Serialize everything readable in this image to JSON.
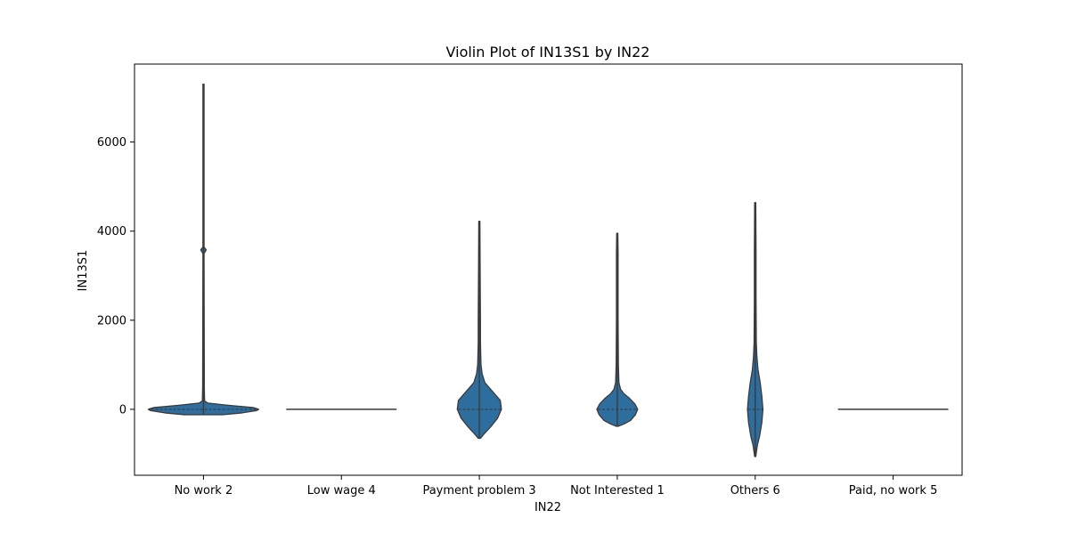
{
  "chart_data": {
    "type": "violin",
    "title": "Violin Plot of IN13S1 by IN22",
    "xlabel": "IN22",
    "ylabel": "IN13S1",
    "ylim": [
      -1480,
      7750
    ],
    "yticks": [
      0,
      2000,
      4000,
      6000
    ],
    "grid": false,
    "legend": "none",
    "color": "#2e6e9e",
    "edge_color": "#3a3a3a",
    "categories": [
      "No work 2",
      "Low wage 4",
      "Payment problem 3",
      "Not Interested 1",
      "Others 6",
      "Paid, no work 5"
    ],
    "violins": [
      {
        "category": "No work 2",
        "min": -120,
        "max": 7300,
        "median": 0,
        "profile": [
          [
            -120,
            0.35
          ],
          [
            -80,
            0.7
          ],
          [
            -30,
            0.96
          ],
          [
            0,
            1.0
          ],
          [
            40,
            0.9
          ],
          [
            90,
            0.45
          ],
          [
            140,
            0.08
          ],
          [
            190,
            0.02
          ],
          [
            500,
            0.015
          ],
          [
            3500,
            0.01
          ],
          [
            3580,
            0.05
          ],
          [
            3640,
            0.01
          ],
          [
            7300,
            0.01
          ]
        ]
      },
      {
        "category": "Low wage 4",
        "min": 0,
        "max": 0,
        "median": 0,
        "profile": [
          [
            0,
            1.0
          ]
        ]
      },
      {
        "category": "Payment problem 3",
        "min": -650,
        "max": 4220,
        "median": 0,
        "profile": [
          [
            -650,
            0.02
          ],
          [
            -560,
            0.08
          ],
          [
            -400,
            0.2
          ],
          [
            -200,
            0.33
          ],
          [
            0,
            0.4
          ],
          [
            200,
            0.38
          ],
          [
            400,
            0.24
          ],
          [
            600,
            0.1
          ],
          [
            800,
            0.05
          ],
          [
            1000,
            0.03
          ],
          [
            1500,
            0.02
          ],
          [
            2000,
            0.02
          ],
          [
            3000,
            0.015
          ],
          [
            4220,
            0.01
          ]
        ]
      },
      {
        "category": "Not Interested 1",
        "min": -380,
        "max": 3950,
        "median": 0,
        "profile": [
          [
            -380,
            0.02
          ],
          [
            -330,
            0.12
          ],
          [
            -250,
            0.24
          ],
          [
            -120,
            0.33
          ],
          [
            0,
            0.37
          ],
          [
            120,
            0.32
          ],
          [
            250,
            0.22
          ],
          [
            350,
            0.12
          ],
          [
            450,
            0.06
          ],
          [
            600,
            0.03
          ],
          [
            1000,
            0.02
          ],
          [
            2000,
            0.015
          ],
          [
            3500,
            0.015
          ],
          [
            3950,
            0.01
          ]
        ]
      },
      {
        "category": "Others 6",
        "min": -1060,
        "max": 4640,
        "median": 0,
        "profile": [
          [
            -1060,
            0.01
          ],
          [
            -800,
            0.04
          ],
          [
            -600,
            0.08
          ],
          [
            -300,
            0.12
          ],
          [
            0,
            0.14
          ],
          [
            300,
            0.12
          ],
          [
            600,
            0.09
          ],
          [
            900,
            0.05
          ],
          [
            1200,
            0.03
          ],
          [
            1500,
            0.02
          ],
          [
            2500,
            0.015
          ],
          [
            3500,
            0.015
          ],
          [
            4640,
            0.01
          ]
        ]
      },
      {
        "category": "Paid, no work 5",
        "min": 0,
        "max": 0,
        "median": 0,
        "profile": [
          [
            0,
            1.0
          ]
        ]
      }
    ]
  }
}
